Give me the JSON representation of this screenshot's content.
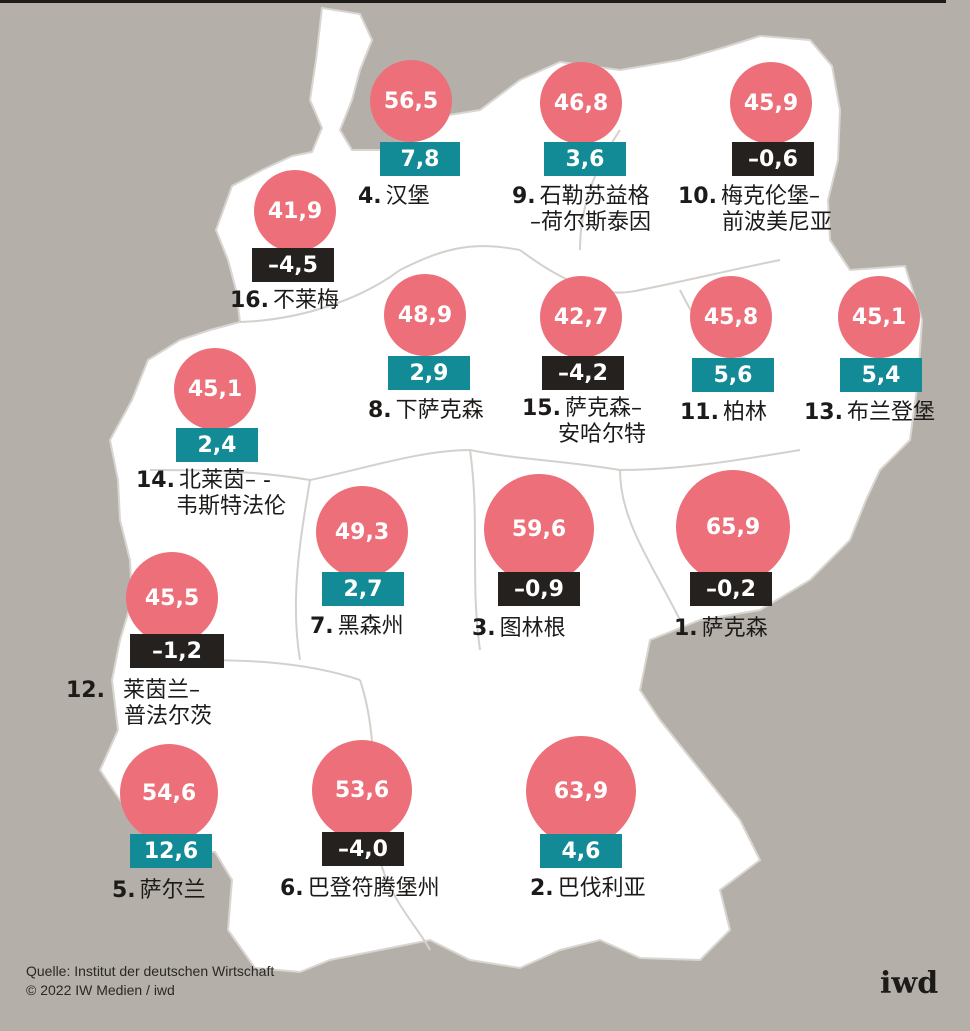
{
  "source": {
    "line1": "Quelle: Institut der deutschen Wirtschaft",
    "line2": "© 2022 IW Medien / iwd"
  },
  "logo": "iwd",
  "colors": {
    "background": "#b4b0a9",
    "map_fill": "#ffffff",
    "circle": "#ec6f79",
    "positive_box": "#128b96",
    "negative_box": "#25211f"
  },
  "states": [
    {
      "id": "hamburg",
      "rank": "4.",
      "name_lines": [
        "汉堡"
      ],
      "value": "56,5",
      "change": "7,8",
      "positive": true
    },
    {
      "id": "schleswig",
      "rank": "9.",
      "name_lines": [
        "石勒苏益格",
        "–荷尔斯泰因"
      ],
      "value": "46,8",
      "change": "3,6",
      "positive": true
    },
    {
      "id": "mecklenburg",
      "rank": "10.",
      "name_lines": [
        "梅克伦堡–",
        "前波美尼亚"
      ],
      "value": "45,9",
      "change": "–0,6",
      "positive": false
    },
    {
      "id": "bremen",
      "rank": "16.",
      "name_lines": [
        "不莱梅"
      ],
      "value": "41,9",
      "change": "–4,5",
      "positive": false
    },
    {
      "id": "niedersachsen",
      "rank": "8.",
      "name_lines": [
        "下萨克森"
      ],
      "value": "48,9",
      "change": "2,9",
      "positive": true
    },
    {
      "id": "sachsen_anhalt",
      "rank": "15.",
      "name_lines": [
        "萨克森–",
        "安哈尔特"
      ],
      "value": "42,7",
      "change": "–4,2",
      "positive": false
    },
    {
      "id": "berlin",
      "rank": "11.",
      "name_lines": [
        "柏林"
      ],
      "value": "45,8",
      "change": "5,6",
      "positive": true
    },
    {
      "id": "brandenburg",
      "rank": "13.",
      "name_lines": [
        "布兰登堡"
      ],
      "value": "45,1",
      "change": "5,4",
      "positive": true
    },
    {
      "id": "nrw",
      "rank": "14.",
      "name_lines": [
        "北莱茵– -",
        "韦斯特法伦"
      ],
      "value": "45,1",
      "change": "2,4",
      "positive": true
    },
    {
      "id": "hessen",
      "rank": "7.",
      "name_lines": [
        "黑森州"
      ],
      "value": "49,3",
      "change": "2,7",
      "positive": true
    },
    {
      "id": "thueringen",
      "rank": "3.",
      "name_lines": [
        "图林根"
      ],
      "value": "59,6",
      "change": "–0,9",
      "positive": false
    },
    {
      "id": "sachsen",
      "rank": "1.",
      "name_lines": [
        "萨克森"
      ],
      "value": "65,9",
      "change": "–0,2",
      "positive": false
    },
    {
      "id": "rlp",
      "rank": "12.",
      "name_lines": [
        "莱茵兰–",
        "普法尔茨"
      ],
      "value": "45,5",
      "change": "–1,2",
      "positive": false
    },
    {
      "id": "saarland",
      "rank": "5.",
      "name_lines": [
        "萨尔兰"
      ],
      "value": "54,6",
      "change": "12,6",
      "positive": true
    },
    {
      "id": "bw",
      "rank": "6.",
      "name_lines": [
        "巴登符腾堡州"
      ],
      "value": "53,6",
      "change": "–4,0",
      "positive": false
    },
    {
      "id": "bayern",
      "rank": "2.",
      "name_lines": [
        "巴伐利亚"
      ],
      "value": "63,9",
      "change": "4,6",
      "positive": true
    }
  ]
}
